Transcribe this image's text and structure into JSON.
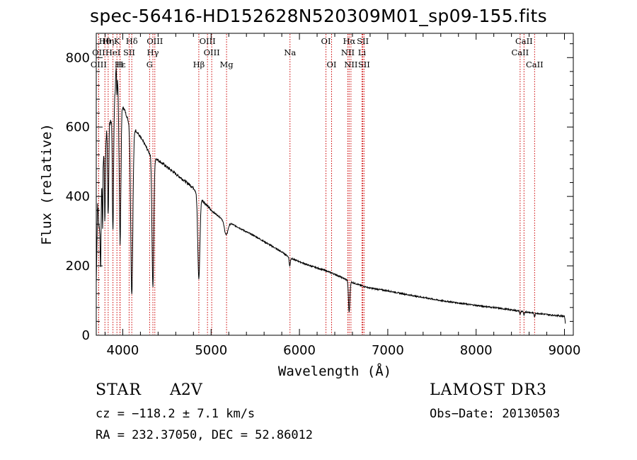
{
  "chart_data": {
    "type": "line",
    "title": "spec-56416-HD152628N520309M01_sp09-155.fits",
    "xlabel": "Wavelength (Å)",
    "ylabel": "Flux (relative)",
    "xlim": [
      3700,
      9100
    ],
    "ylim": [
      0,
      870
    ],
    "xticks": [
      4000,
      5000,
      6000,
      7000,
      8000,
      9000
    ],
    "yticks": [
      0,
      200,
      400,
      600,
      800
    ],
    "grid": false,
    "continuum": [
      [
        3700,
        150
      ],
      [
        3715,
        380
      ],
      [
        3735,
        300
      ],
      [
        3760,
        460
      ],
      [
        3790,
        540
      ],
      [
        3820,
        590
      ],
      [
        3850,
        610
      ],
      [
        3880,
        640
      ],
      [
        3910,
        690
      ],
      [
        3935,
        820
      ],
      [
        3955,
        650
      ],
      [
        3990,
        660
      ],
      [
        4020,
        650
      ],
      [
        4060,
        620
      ],
      [
        4100,
        600
      ],
      [
        4150,
        590
      ],
      [
        4200,
        570
      ],
      [
        4250,
        550
      ],
      [
        4300,
        525
      ],
      [
        4350,
        515
      ],
      [
        4400,
        505
      ],
      [
        4450,
        495
      ],
      [
        4500,
        485
      ],
      [
        4600,
        465
      ],
      [
        4700,
        445
      ],
      [
        4800,
        425
      ],
      [
        4900,
        390
      ],
      [
        5000,
        360
      ],
      [
        5100,
        340
      ],
      [
        5200,
        325
      ],
      [
        5300,
        312
      ],
      [
        5400,
        298
      ],
      [
        5500,
        285
      ],
      [
        5600,
        270
      ],
      [
        5700,
        255
      ],
      [
        5800,
        240
      ],
      [
        5900,
        222
      ],
      [
        6000,
        212
      ],
      [
        6100,
        202
      ],
      [
        6200,
        194
      ],
      [
        6300,
        186
      ],
      [
        6400,
        176
      ],
      [
        6500,
        164
      ],
      [
        6600,
        152
      ],
      [
        6700,
        143
      ],
      [
        6800,
        136
      ],
      [
        7000,
        128
      ],
      [
        7200,
        118
      ],
      [
        7400,
        109
      ],
      [
        7600,
        100
      ],
      [
        7800,
        93
      ],
      [
        8000,
        86
      ],
      [
        8200,
        80
      ],
      [
        8400,
        73
      ],
      [
        8600,
        66
      ],
      [
        8800,
        60
      ],
      [
        8900,
        57
      ],
      [
        9000,
        55
      ],
      [
        9010,
        35
      ]
    ],
    "absorption": [
      [
        3750,
        200,
        5
      ],
      [
        3771,
        180,
        4
      ],
      [
        3798,
        230,
        5
      ],
      [
        3835,
        260,
        6
      ],
      [
        3889,
        350,
        7
      ],
      [
        3934,
        130,
        4
      ],
      [
        3970,
        380,
        9
      ],
      [
        4102,
        480,
        12
      ],
      [
        4341,
        380,
        10
      ],
      [
        4861,
        240,
        12
      ],
      [
        5170,
        40,
        20
      ],
      [
        5890,
        25,
        6
      ],
      [
        6563,
        90,
        8
      ],
      [
        8498,
        10,
        5
      ],
      [
        8542,
        12,
        5
      ],
      [
        8662,
        12,
        5
      ]
    ],
    "spectral_lines": [
      {
        "label": "Hθ",
        "wavelength": 3798,
        "row": 1
      },
      {
        "label": "Hη",
        "wavelength": 3835,
        "row": 1
      },
      {
        "label": "K",
        "wavelength": 3934,
        "row": 1
      },
      {
        "label": "Hδ",
        "wavelength": 4102,
        "row": 1
      },
      {
        "label": "OIII",
        "wavelength": 4363,
        "row": 1
      },
      {
        "label": "OIII",
        "wavelength": 4959,
        "row": 1
      },
      {
        "label": "OI",
        "wavelength": 6300,
        "row": 1
      },
      {
        "label": "Hα",
        "wavelength": 6563,
        "row": 1
      },
      {
        "label": "SII",
        "wavelength": 6717,
        "row": 1
      },
      {
        "label": "CaII",
        "wavelength": 8542,
        "row": 1
      },
      {
        "label": "OII",
        "wavelength": 3727,
        "row": 2
      },
      {
        "label": "HeI",
        "wavelength": 3889,
        "row": 2
      },
      {
        "label": "SII",
        "wavelength": 4072,
        "row": 2
      },
      {
        "label": "Hγ",
        "wavelength": 4341,
        "row": 2
      },
      {
        "label": "OIII",
        "wavelength": 5007,
        "row": 2
      },
      {
        "label": "Na",
        "wavelength": 5893,
        "row": 2
      },
      {
        "label": "NII",
        "wavelength": 6548,
        "row": 2
      },
      {
        "label": "Li",
        "wavelength": 6708,
        "row": 2
      },
      {
        "label": "CaII",
        "wavelength": 8498,
        "row": 2
      },
      {
        "label": "OIII",
        "wavelength": 3727,
        "row": 3
      },
      {
        "label": "Hε",
        "wavelength": 3970,
        "row": 3
      },
      {
        "label": "H",
        "wavelength": 3968,
        "row": 3
      },
      {
        "label": "G",
        "wavelength": 4304,
        "row": 3
      },
      {
        "label": "Hβ",
        "wavelength": 4861,
        "row": 3
      },
      {
        "label": "Mg",
        "wavelength": 5175,
        "row": 3
      },
      {
        "label": "OI",
        "wavelength": 6364,
        "row": 3
      },
      {
        "label": "NII",
        "wavelength": 6583,
        "row": 3
      },
      {
        "label": "SII",
        "wavelength": 6731,
        "row": 3
      },
      {
        "label": "CaII",
        "wavelength": 8662,
        "row": 3
      }
    ]
  },
  "info": {
    "object_type": "STAR",
    "spectral_class": "A2V",
    "survey": "LAMOST DR3",
    "cz": "cz = −118.2 ± 7.1 km/s",
    "obs_date": "Obs−Date: 20130503",
    "radec": "RA = 232.37050, DEC =  52.86012"
  },
  "colors": {
    "spectrum": "#000000",
    "line_markers": "#cc0000",
    "frame": "#000000",
    "background": "#ffffff"
  }
}
